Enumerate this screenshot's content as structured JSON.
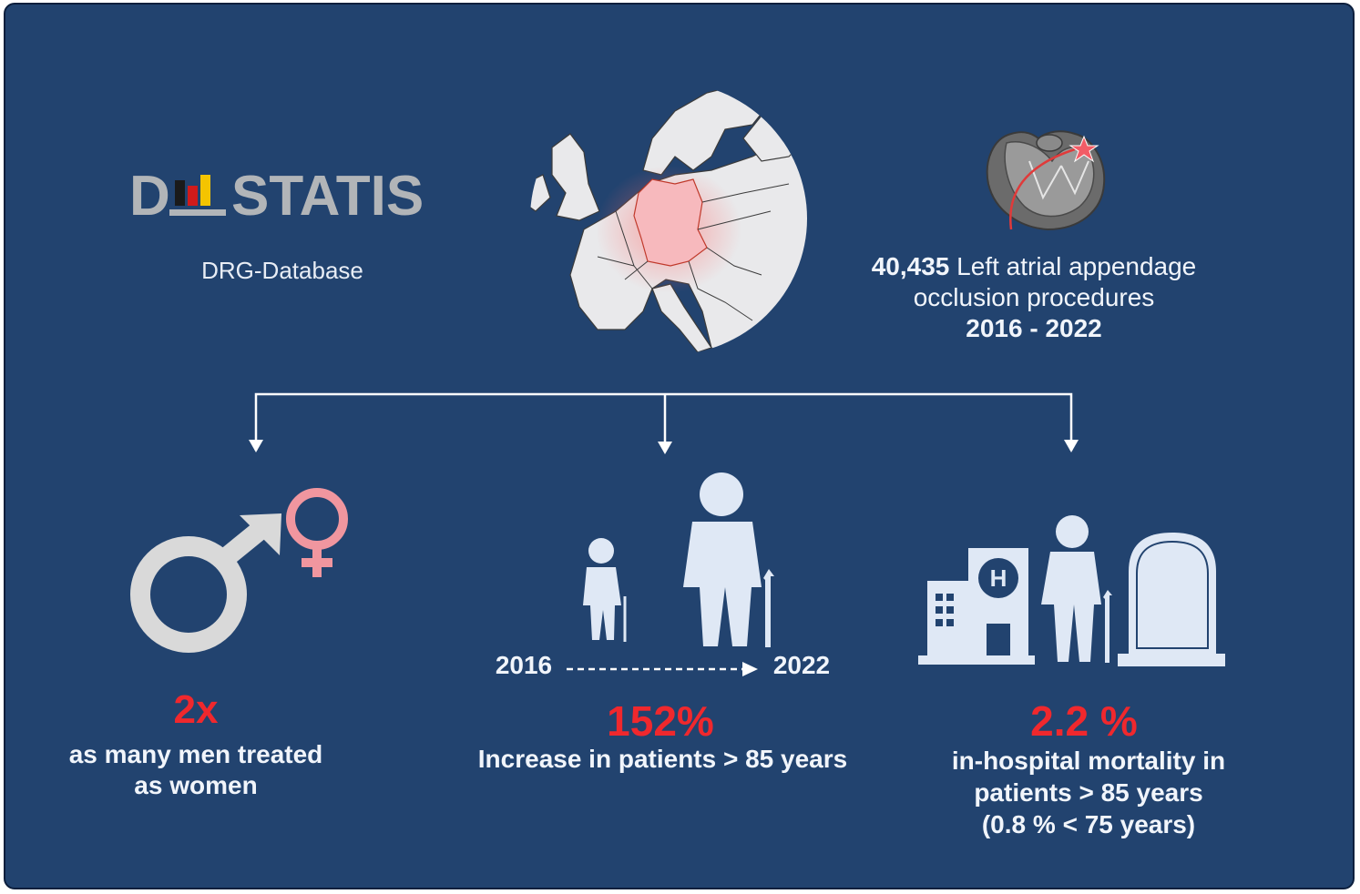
{
  "source": {
    "logo_text": "D STATIS",
    "database_label": "DRG-Database"
  },
  "procedures": {
    "count": "40,435",
    "label_line1": "Left atrial appendage",
    "label_line2": "occlusion procedures",
    "years": "2016 - 2022"
  },
  "findings": [
    {
      "value": "2x",
      "line1": "as many men treated",
      "line2": "as  women"
    },
    {
      "year_start": "2016",
      "year_end": "2022",
      "value": "152%",
      "line1": "Increase in patients > 85 years"
    },
    {
      "value": "2.2 %",
      "line1": "in-hospital mortality in",
      "line2": "patients > 85 years",
      "line3": "(0.8 % < 75 years)"
    }
  ],
  "colors": {
    "background": "#22436f",
    "highlight_red": "#f0282d",
    "germany": "#f7b9bd",
    "female_symbol": "#f0969f",
    "male_symbol": "#d9d9d9"
  }
}
